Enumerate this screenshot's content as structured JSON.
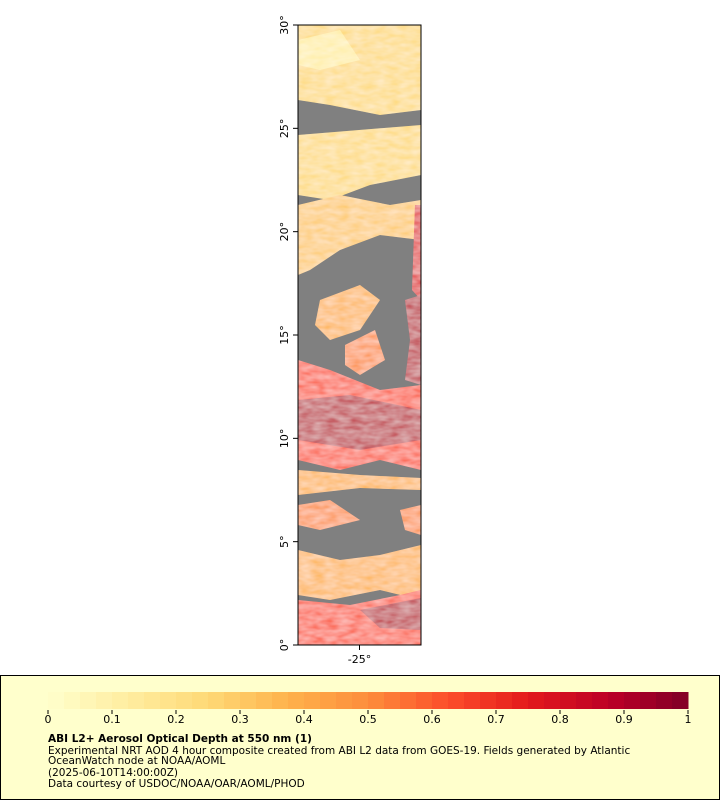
{
  "map": {
    "ylim": [
      0,
      30
    ],
    "yticks": [
      {
        "value": 0,
        "label": "0°"
      },
      {
        "value": 5,
        "label": "5°"
      },
      {
        "value": 10,
        "label": "10°"
      },
      {
        "value": 15,
        "label": "15°"
      },
      {
        "value": 20,
        "label": "20°"
      },
      {
        "value": 25,
        "label": "25°"
      },
      {
        "value": 30,
        "label": "30°"
      }
    ],
    "xlim": [
      -28,
      -22
    ],
    "xticks": [
      {
        "value": -25,
        "label": "-25°"
      }
    ]
  },
  "colorbar": {
    "lim": [
      0,
      1
    ],
    "ticks": [
      0,
      0.1,
      0.2,
      0.3,
      0.4,
      0.5,
      0.6,
      0.7,
      0.8,
      0.9,
      1
    ],
    "colors": [
      "#ffffcc",
      "#ffeda0",
      "#fed976",
      "#feb24c",
      "#fd8d3c",
      "#fc4e2a",
      "#e31a1c",
      "#bd0026",
      "#800026"
    ],
    "levels": 40
  },
  "caption": {
    "title": "ABI L2+ Aerosol Optical Depth at 550 nm (1)",
    "lines": [
      "Experimental NRT AOD 4 hour composite created from ABI L2 data from GOES-19. Fields generated by Atlantic",
      "OceanWatch node at NOAA/AOML",
      "(2025-06-10T14:00:00Z)",
      "Data courtesy of USDOC/NOAA/OAR/AOML/PHOD"
    ]
  }
}
